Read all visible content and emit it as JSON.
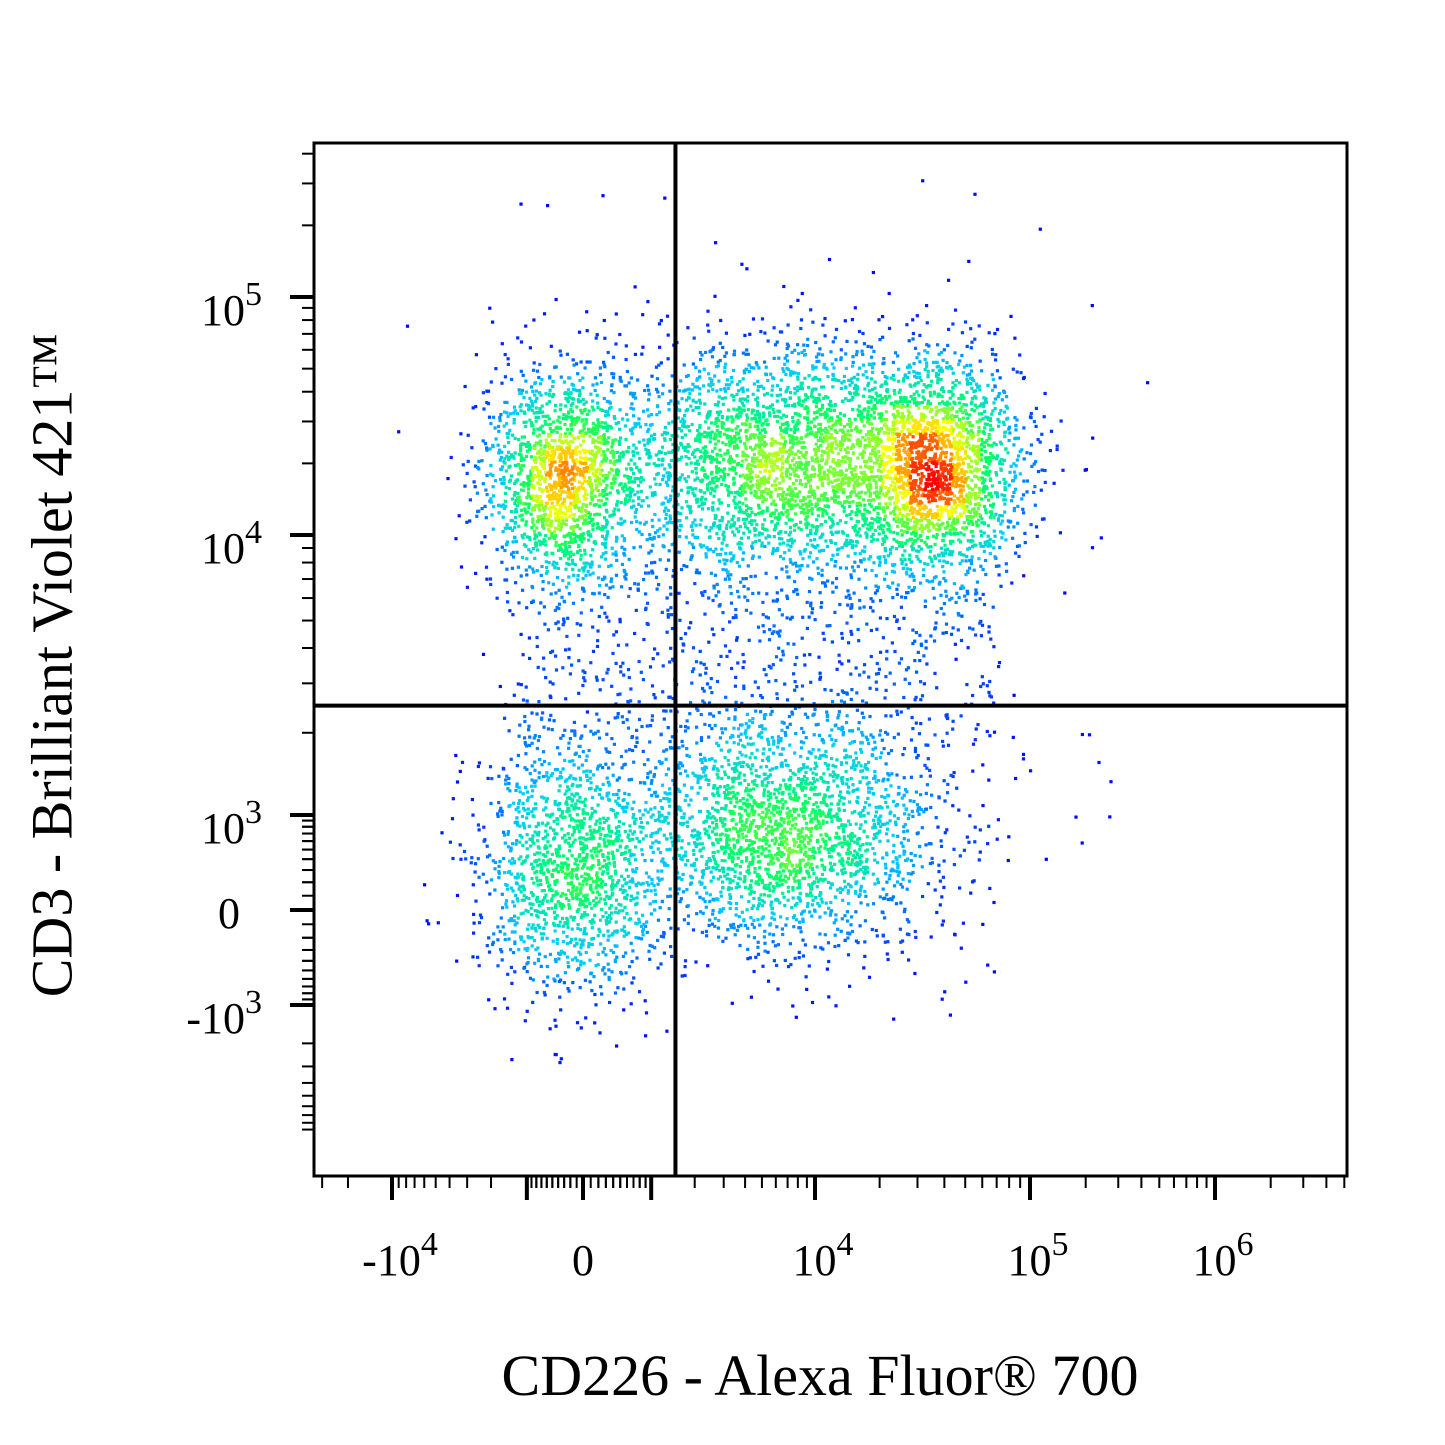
{
  "chart_data": {
    "type": "scatter",
    "subtype": "flow cytometry density dot plot",
    "xlabel": "CD226 - Alexa Fluor® 700",
    "ylabel": "CD3 - Brilliant Violet 421™",
    "x_scale": "biexponential (logicle)",
    "y_scale": "biexponential (logicle)",
    "x_ticks": [
      {
        "value": -10000,
        "base": "-10",
        "exp": "4"
      },
      {
        "value": 0,
        "base": "0",
        "exp": ""
      },
      {
        "value": 10000,
        "base": "10",
        "exp": "4"
      },
      {
        "value": 100000,
        "base": "10",
        "exp": "5"
      },
      {
        "value": 1000000,
        "base": "10",
        "exp": "6"
      }
    ],
    "y_ticks": [
      {
        "value": 100000,
        "base": "10",
        "exp": "5"
      },
      {
        "value": 10000,
        "base": "10",
        "exp": "4"
      },
      {
        "value": 1000,
        "base": "10",
        "exp": "3"
      },
      {
        "value": 0,
        "base": "0",
        "exp": ""
      },
      {
        "value": -1000,
        "base": "-10",
        "exp": "3"
      }
    ],
    "quadrant_gate": {
      "x": 1500,
      "y": 2500
    },
    "populations": [
      {
        "name": "CD3+ CD226-",
        "x_center": -300,
        "y_center": 17000,
        "relative_density": 0.65
      },
      {
        "name": "CD3+ CD226+ (mid)",
        "x_center": 7500,
        "y_center": 20000,
        "relative_density": 0.85
      },
      {
        "name": "CD3+ CD226+ (high)",
        "x_center": 38000,
        "y_center": 19000,
        "relative_density": 1.0
      },
      {
        "name": "CD3- CD226-",
        "x_center": -200,
        "y_center": 350,
        "relative_density": 0.4
      },
      {
        "name": "CD3- CD226+",
        "x_center": 6500,
        "y_center": 750,
        "relative_density": 0.55
      }
    ],
    "colormap": [
      "#0000ff",
      "#00c8ff",
      "#00ff66",
      "#ffff00",
      "#ff0000"
    ],
    "grid": false,
    "legend": "none"
  }
}
